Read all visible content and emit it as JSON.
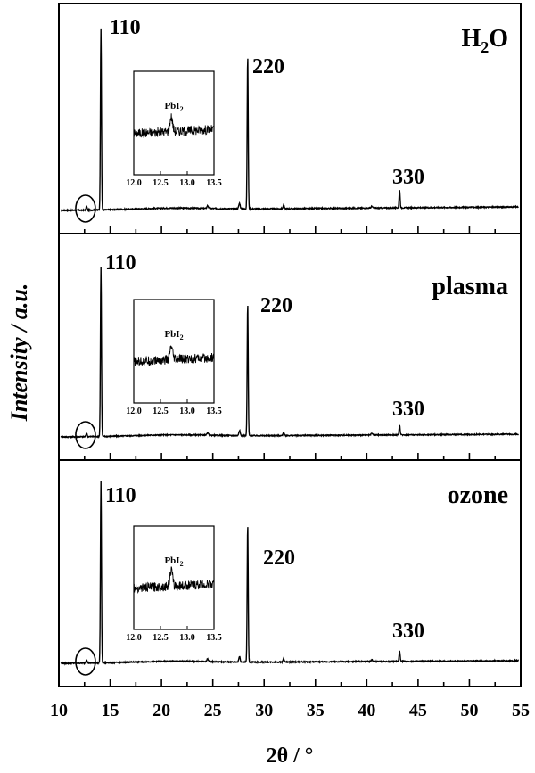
{
  "chart_data": {
    "type": "line",
    "title": "",
    "xlabel": "2θ / °",
    "ylabel": "Intensity / a.u.",
    "xlim": [
      10,
      55
    ],
    "xticks": [
      "10",
      "15",
      "20",
      "25",
      "30",
      "35",
      "40",
      "45",
      "50",
      "55"
    ],
    "grid": false,
    "panels": [
      {
        "label": "H₂O",
        "label_main": "H",
        "label_sub": "2",
        "label_tail": "O",
        "peaks": [
          {
            "label": "110",
            "two_theta": 14.1,
            "intensity": 1.0
          },
          {
            "label": "220",
            "two_theta": 28.4,
            "intensity": 0.84
          },
          {
            "label": "330",
            "two_theta": 43.2,
            "intensity": 0.1
          }
        ],
        "inset": {
          "label": "PbI2",
          "label_main": "PbI",
          "label_sub": "2",
          "xlim": [
            12.0,
            13.5
          ],
          "xticks": [
            "12.0",
            "12.5",
            "13.0",
            "13.5"
          ],
          "peak_at": 12.7,
          "peak_height": 0.55
        }
      },
      {
        "label": "plasma",
        "peaks": [
          {
            "label": "110",
            "two_theta": 14.1,
            "intensity": 1.0
          },
          {
            "label": "220",
            "two_theta": 28.4,
            "intensity": 0.78
          },
          {
            "label": "330",
            "two_theta": 43.2,
            "intensity": 0.06
          }
        ],
        "inset": {
          "label": "PbI2",
          "label_main": "PbI",
          "label_sub": "2",
          "xlim": [
            12.0,
            13.5
          ],
          "xticks": [
            "12.0",
            "12.5",
            "13.0",
            "13.5"
          ],
          "peak_at": 12.7,
          "peak_height": 0.45
        }
      },
      {
        "label": "ozone",
        "peaks": [
          {
            "label": "110",
            "two_theta": 14.1,
            "intensity": 1.0
          },
          {
            "label": "220",
            "two_theta": 28.4,
            "intensity": 0.76
          },
          {
            "label": "330",
            "two_theta": 43.2,
            "intensity": 0.06
          }
        ],
        "inset": {
          "label": "PbI2",
          "label_main": "PbI",
          "label_sub": "2",
          "xlim": [
            12.0,
            13.5
          ],
          "xticks": [
            "12.0",
            "12.5",
            "13.0",
            "13.5"
          ],
          "peak_at": 12.7,
          "peak_height": 0.6
        }
      }
    ]
  }
}
